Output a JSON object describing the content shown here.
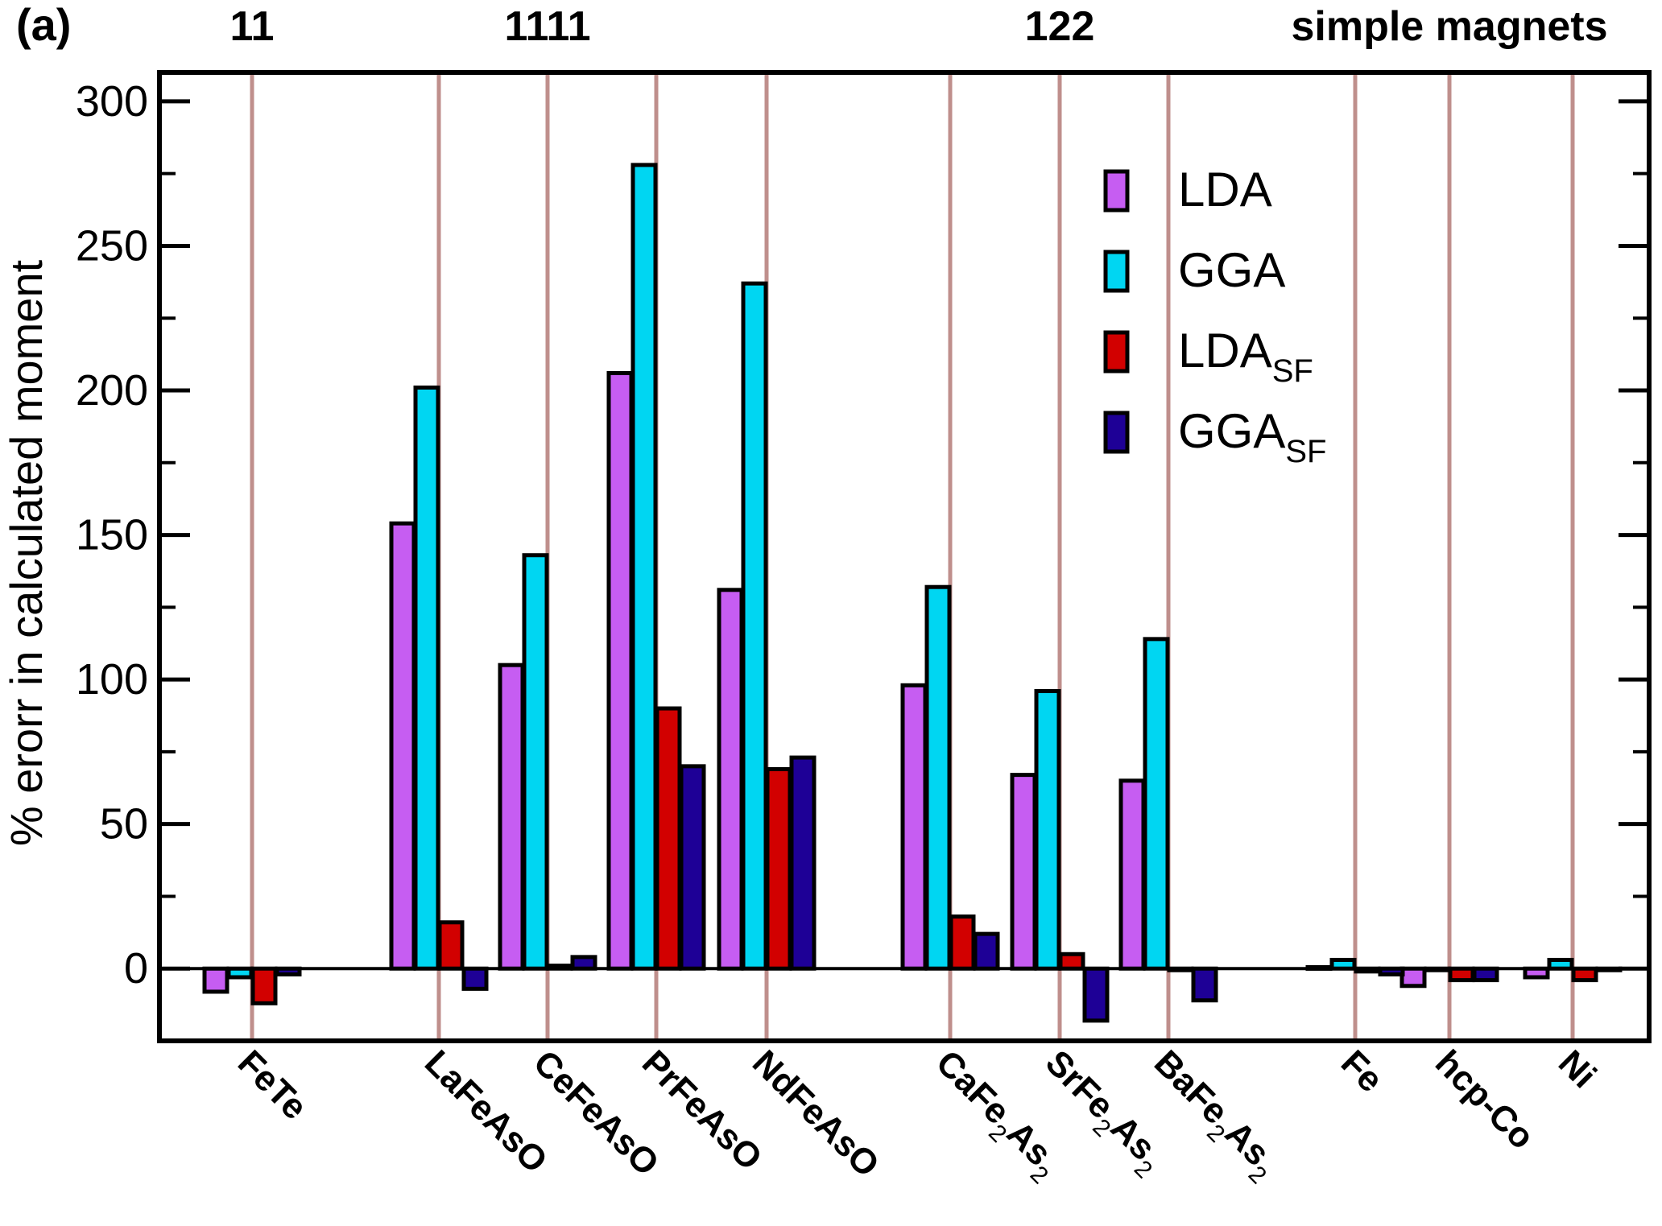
{
  "panel_label": "(a)",
  "colors": {
    "LDA": "#c65df2",
    "GGA": "#00d6f2",
    "LDA_SF": "#d20000",
    "GGA_SF": "#1e0096",
    "divider": "#bf8f8c",
    "axis": "#000000"
  },
  "chart_data": {
    "type": "bar",
    "title": "",
    "ylabel": "% erorr in calculated moment",
    "ylim": [
      -25,
      310
    ],
    "yticks": [
      "0",
      "50",
      "100",
      "150",
      "200",
      "250",
      "300"
    ],
    "ytick_values": [
      0,
      50,
      100,
      150,
      200,
      250,
      300
    ],
    "categories": [
      "FeTe",
      "LaFeAsO",
      "CeFeAsO",
      "PrFeAsO",
      "NdFeAsO",
      "CaFe2As2",
      "SrFe2As2",
      "BaFe2As2",
      "Fe",
      "hcp-Co",
      "Ni"
    ],
    "category_labels": [
      {
        "main": "FeTe",
        "parts": [
          {
            "t": "FeTe",
            "sub": false
          }
        ]
      },
      {
        "main": "LaFeAsO",
        "parts": [
          {
            "t": "LaFeAsO",
            "sub": false
          }
        ]
      },
      {
        "main": "CeFeAsO",
        "parts": [
          {
            "t": "CeFeAsO",
            "sub": false
          }
        ]
      },
      {
        "main": "PrFeAsO",
        "parts": [
          {
            "t": "PrFeAsO",
            "sub": false
          }
        ]
      },
      {
        "main": "NdFeAsO",
        "parts": [
          {
            "t": "NdFeAsO",
            "sub": false
          }
        ]
      },
      {
        "main": "CaFe2As2",
        "parts": [
          {
            "t": "CaFe",
            "sub": false
          },
          {
            "t": "2",
            "sub": true
          },
          {
            "t": "As",
            "sub": false
          },
          {
            "t": "2",
            "sub": true
          }
        ]
      },
      {
        "main": "SrFe2As2",
        "parts": [
          {
            "t": "SrFe",
            "sub": false
          },
          {
            "t": "2",
            "sub": true
          },
          {
            "t": "As",
            "sub": false
          },
          {
            "t": "2",
            "sub": true
          }
        ]
      },
      {
        "main": "BaFe2As2",
        "parts": [
          {
            "t": "BaFe",
            "sub": false
          },
          {
            "t": "2",
            "sub": true
          },
          {
            "t": "As",
            "sub": false
          },
          {
            "t": "2",
            "sub": true
          }
        ]
      },
      {
        "main": "Fe",
        "parts": [
          {
            "t": "Fe",
            "sub": false
          }
        ]
      },
      {
        "main": "hcp-Co",
        "parts": [
          {
            "t": "hcp-Co",
            "sub": false
          }
        ]
      },
      {
        "main": "Ni",
        "parts": [
          {
            "t": "Ni",
            "sub": false
          }
        ]
      }
    ],
    "series": [
      {
        "name": "LDA",
        "values": [
          -8,
          154,
          105,
          206,
          131,
          98,
          67,
          65,
          0.5,
          -6,
          -3
        ]
      },
      {
        "name": "GGA",
        "values": [
          -3,
          201,
          143,
          278,
          237,
          132,
          96,
          114,
          3,
          -0.5,
          3
        ]
      },
      {
        "name": "LDA_SF",
        "values": [
          -12,
          16,
          1,
          90,
          69,
          18,
          5,
          0,
          -1,
          -4,
          -4
        ]
      },
      {
        "name": "GGA_SF",
        "values": [
          -2,
          -7,
          4,
          70,
          73,
          12,
          -18,
          -11,
          -2,
          -4,
          0
        ]
      }
    ],
    "group_headers": [
      {
        "label": "11",
        "category": "FeTe"
      },
      {
        "label": "1111",
        "category": "CeFeAsO"
      },
      {
        "label": "122",
        "category": "SrFe2As2"
      },
      {
        "label": "simple magnets",
        "category": "hcp-Co"
      }
    ],
    "legend": [
      {
        "key": "LDA",
        "label": "LDA",
        "sub": ""
      },
      {
        "key": "GGA",
        "label": "GGA",
        "sub": ""
      },
      {
        "key": "LDA_SF",
        "label": "LDA",
        "sub": "SF"
      },
      {
        "key": "GGA_SF",
        "label": "GGA",
        "sub": "SF"
      }
    ],
    "legend_position": "top-right"
  }
}
